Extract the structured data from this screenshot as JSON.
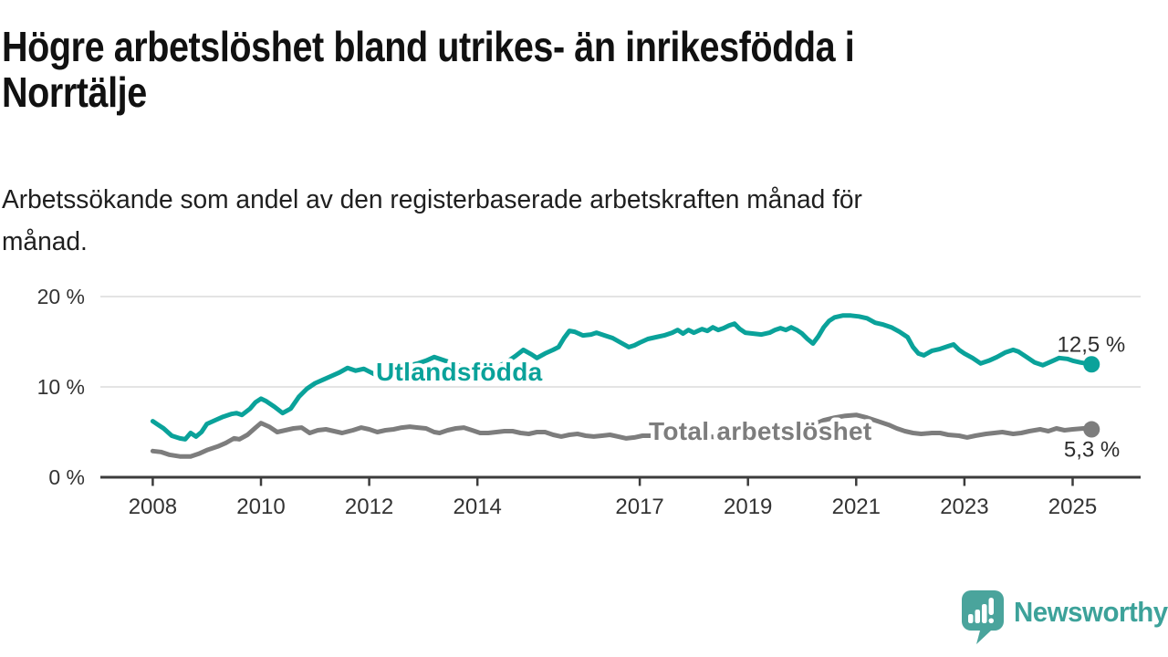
{
  "title": {
    "line1": "Högre arbetslöshet bland utrikes- än inrikesfödda i",
    "line2": "Norrtälje"
  },
  "subtitle": {
    "line1": "Arbetssökande som andel av den registerbaserade arbetskraften månad för",
    "line2": "månad."
  },
  "chart_data": {
    "type": "line",
    "title": "Högre arbetslöshet bland utrikes- än inrikesfödda i Norrtälje",
    "subtitle": "Arbetssökande som andel av den registerbaserade arbetskraften månad för månad.",
    "unit": "%",
    "grid": "horizontal",
    "legend": "inline-labels",
    "xlim": [
      2007.7,
      2026.3
    ],
    "ylim": [
      0,
      21
    ],
    "y_ticks": [
      {
        "value": 0,
        "label": "0 %"
      },
      {
        "value": 10,
        "label": "10 %"
      },
      {
        "value": 20,
        "label": "20 %"
      }
    ],
    "x_ticks": [
      {
        "value": 2008,
        "label": "2008"
      },
      {
        "value": 2010,
        "label": "2010"
      },
      {
        "value": 2012,
        "label": "2012"
      },
      {
        "value": 2014,
        "label": "2014"
      },
      {
        "value": 2017,
        "label": "2017"
      },
      {
        "value": 2019,
        "label": "2019"
      },
      {
        "value": 2021,
        "label": "2021"
      },
      {
        "value": 2023,
        "label": "2023"
      },
      {
        "value": 2025,
        "label": "2025"
      }
    ],
    "series": [
      {
        "name": "Utlandsfödda",
        "color": "#0aa29a",
        "end_value": 12.5,
        "end_label": "12,5 %",
        "points": [
          [
            2008.0,
            6.2
          ],
          [
            2008.1,
            5.8
          ],
          [
            2008.2,
            5.4
          ],
          [
            2008.35,
            4.6
          ],
          [
            2008.5,
            4.3
          ],
          [
            2008.6,
            4.2
          ],
          [
            2008.7,
            4.9
          ],
          [
            2008.8,
            4.5
          ],
          [
            2008.9,
            5.0
          ],
          [
            2009.0,
            5.9
          ],
          [
            2009.15,
            6.3
          ],
          [
            2009.3,
            6.7
          ],
          [
            2009.45,
            7.0
          ],
          [
            2009.55,
            7.1
          ],
          [
            2009.65,
            6.9
          ],
          [
            2009.8,
            7.6
          ],
          [
            2009.9,
            8.3
          ],
          [
            2010.0,
            8.7
          ],
          [
            2010.1,
            8.4
          ],
          [
            2010.25,
            7.8
          ],
          [
            2010.4,
            7.1
          ],
          [
            2010.55,
            7.6
          ],
          [
            2010.7,
            8.9
          ],
          [
            2010.85,
            9.8
          ],
          [
            2011.0,
            10.4
          ],
          [
            2011.15,
            10.8
          ],
          [
            2011.3,
            11.2
          ],
          [
            2011.45,
            11.6
          ],
          [
            2011.6,
            12.1
          ],
          [
            2011.75,
            11.8
          ],
          [
            2011.9,
            12.0
          ],
          [
            2012.0,
            11.7
          ],
          [
            2012.1,
            11.4
          ],
          [
            2012.25,
            11.3
          ],
          [
            2012.4,
            11.9
          ],
          [
            2012.6,
            12.2
          ],
          [
            2012.75,
            12.4
          ],
          [
            2012.9,
            12.6
          ],
          [
            2013.05,
            12.9
          ],
          [
            2013.2,
            13.3
          ],
          [
            2013.35,
            13.0
          ],
          [
            2013.5,
            12.7
          ],
          [
            2013.65,
            12.4
          ],
          [
            2013.8,
            12.1
          ],
          [
            2013.95,
            12.3
          ],
          [
            2014.1,
            11.9
          ],
          [
            2014.25,
            11.7
          ],
          [
            2014.4,
            12.3
          ],
          [
            2014.55,
            12.8
          ],
          [
            2014.7,
            13.4
          ],
          [
            2014.85,
            14.1
          ],
          [
            2015.0,
            13.6
          ],
          [
            2015.1,
            13.2
          ],
          [
            2015.25,
            13.7
          ],
          [
            2015.4,
            14.1
          ],
          [
            2015.5,
            14.4
          ],
          [
            2015.6,
            15.4
          ],
          [
            2015.7,
            16.2
          ],
          [
            2015.8,
            16.1
          ],
          [
            2015.95,
            15.7
          ],
          [
            2016.1,
            15.8
          ],
          [
            2016.2,
            16.0
          ],
          [
            2016.35,
            15.7
          ],
          [
            2016.5,
            15.4
          ],
          [
            2016.65,
            14.9
          ],
          [
            2016.8,
            14.4
          ],
          [
            2016.9,
            14.6
          ],
          [
            2017.0,
            14.9
          ],
          [
            2017.15,
            15.3
          ],
          [
            2017.3,
            15.5
          ],
          [
            2017.45,
            15.7
          ],
          [
            2017.6,
            16.0
          ],
          [
            2017.7,
            16.3
          ],
          [
            2017.8,
            15.9
          ],
          [
            2017.9,
            16.3
          ],
          [
            2018.0,
            16.0
          ],
          [
            2018.15,
            16.4
          ],
          [
            2018.25,
            16.2
          ],
          [
            2018.35,
            16.6
          ],
          [
            2018.45,
            16.3
          ],
          [
            2018.55,
            16.5
          ],
          [
            2018.65,
            16.8
          ],
          [
            2018.75,
            17.0
          ],
          [
            2018.85,
            16.4
          ],
          [
            2018.95,
            16.0
          ],
          [
            2019.1,
            15.9
          ],
          [
            2019.25,
            15.8
          ],
          [
            2019.4,
            16.0
          ],
          [
            2019.5,
            16.3
          ],
          [
            2019.6,
            16.5
          ],
          [
            2019.7,
            16.3
          ],
          [
            2019.8,
            16.6
          ],
          [
            2019.9,
            16.3
          ],
          [
            2020.0,
            15.9
          ],
          [
            2020.1,
            15.3
          ],
          [
            2020.2,
            14.8
          ],
          [
            2020.3,
            15.6
          ],
          [
            2020.4,
            16.6
          ],
          [
            2020.5,
            17.3
          ],
          [
            2020.6,
            17.7
          ],
          [
            2020.75,
            17.9
          ],
          [
            2020.9,
            17.9
          ],
          [
            2021.05,
            17.8
          ],
          [
            2021.2,
            17.6
          ],
          [
            2021.35,
            17.1
          ],
          [
            2021.5,
            16.9
          ],
          [
            2021.65,
            16.6
          ],
          [
            2021.8,
            16.1
          ],
          [
            2021.95,
            15.5
          ],
          [
            2022.05,
            14.4
          ],
          [
            2022.15,
            13.7
          ],
          [
            2022.25,
            13.5
          ],
          [
            2022.4,
            14.0
          ],
          [
            2022.55,
            14.2
          ],
          [
            2022.7,
            14.5
          ],
          [
            2022.8,
            14.7
          ],
          [
            2022.9,
            14.1
          ],
          [
            2023.0,
            13.7
          ],
          [
            2023.15,
            13.2
          ],
          [
            2023.3,
            12.6
          ],
          [
            2023.45,
            12.9
          ],
          [
            2023.6,
            13.3
          ],
          [
            2023.75,
            13.8
          ],
          [
            2023.9,
            14.1
          ],
          [
            2024.0,
            13.9
          ],
          [
            2024.15,
            13.3
          ],
          [
            2024.3,
            12.7
          ],
          [
            2024.45,
            12.4
          ],
          [
            2024.6,
            12.8
          ],
          [
            2024.75,
            13.2
          ],
          [
            2024.9,
            13.1
          ],
          [
            2025.0,
            12.9
          ],
          [
            2025.15,
            12.7
          ],
          [
            2025.35,
            12.5
          ]
        ]
      },
      {
        "name": "Total arbetslöshet",
        "color": "#7d7d7d",
        "end_value": 5.3,
        "end_label": "5,3 %",
        "points": [
          [
            2008.0,
            2.9
          ],
          [
            2008.15,
            2.8
          ],
          [
            2008.3,
            2.5
          ],
          [
            2008.5,
            2.3
          ],
          [
            2008.7,
            2.3
          ],
          [
            2008.85,
            2.6
          ],
          [
            2009.0,
            3.0
          ],
          [
            2009.2,
            3.4
          ],
          [
            2009.35,
            3.8
          ],
          [
            2009.5,
            4.3
          ],
          [
            2009.6,
            4.2
          ],
          [
            2009.75,
            4.7
          ],
          [
            2009.9,
            5.5
          ],
          [
            2010.0,
            6.0
          ],
          [
            2010.15,
            5.6
          ],
          [
            2010.3,
            5.0
          ],
          [
            2010.45,
            5.2
          ],
          [
            2010.6,
            5.4
          ],
          [
            2010.75,
            5.5
          ],
          [
            2010.9,
            4.9
          ],
          [
            2011.05,
            5.2
          ],
          [
            2011.2,
            5.3
          ],
          [
            2011.35,
            5.1
          ],
          [
            2011.5,
            4.9
          ],
          [
            2011.7,
            5.2
          ],
          [
            2011.85,
            5.5
          ],
          [
            2012.0,
            5.3
          ],
          [
            2012.15,
            5.0
          ],
          [
            2012.3,
            5.2
          ],
          [
            2012.45,
            5.3
          ],
          [
            2012.6,
            5.5
          ],
          [
            2012.75,
            5.6
          ],
          [
            2012.9,
            5.5
          ],
          [
            2013.05,
            5.4
          ],
          [
            2013.2,
            5.0
          ],
          [
            2013.3,
            4.9
          ],
          [
            2013.45,
            5.2
          ],
          [
            2013.6,
            5.4
          ],
          [
            2013.75,
            5.5
          ],
          [
            2013.9,
            5.2
          ],
          [
            2014.05,
            4.9
          ],
          [
            2014.2,
            4.9
          ],
          [
            2014.35,
            5.0
          ],
          [
            2014.5,
            5.1
          ],
          [
            2014.65,
            5.1
          ],
          [
            2014.8,
            4.9
          ],
          [
            2014.95,
            4.8
          ],
          [
            2015.1,
            5.0
          ],
          [
            2015.25,
            5.0
          ],
          [
            2015.4,
            4.7
          ],
          [
            2015.55,
            4.5
          ],
          [
            2015.7,
            4.7
          ],
          [
            2015.85,
            4.8
          ],
          [
            2016.0,
            4.6
          ],
          [
            2016.15,
            4.5
          ],
          [
            2016.3,
            4.6
          ],
          [
            2016.45,
            4.7
          ],
          [
            2016.6,
            4.5
          ],
          [
            2016.75,
            4.3
          ],
          [
            2016.9,
            4.4
          ],
          [
            2017.05,
            4.6
          ],
          [
            2017.2,
            4.6
          ],
          [
            2017.4,
            4.4
          ],
          [
            2017.6,
            4.4
          ],
          [
            2017.8,
            4.5
          ],
          [
            2018.0,
            4.4
          ],
          [
            2018.25,
            4.5
          ],
          [
            2018.5,
            4.4
          ],
          [
            2018.75,
            4.5
          ],
          [
            2019.0,
            4.6
          ],
          [
            2019.25,
            4.7
          ],
          [
            2019.5,
            4.8
          ],
          [
            2019.75,
            4.9
          ],
          [
            2020.0,
            5.2
          ],
          [
            2020.2,
            5.8
          ],
          [
            2020.4,
            6.3
          ],
          [
            2020.6,
            6.6
          ],
          [
            2020.8,
            6.8
          ],
          [
            2021.0,
            6.9
          ],
          [
            2021.2,
            6.6
          ],
          [
            2021.4,
            6.2
          ],
          [
            2021.6,
            5.8
          ],
          [
            2021.75,
            5.4
          ],
          [
            2021.9,
            5.1
          ],
          [
            2022.05,
            4.9
          ],
          [
            2022.2,
            4.8
          ],
          [
            2022.4,
            4.9
          ],
          [
            2022.55,
            4.9
          ],
          [
            2022.7,
            4.7
          ],
          [
            2022.9,
            4.6
          ],
          [
            2023.05,
            4.4
          ],
          [
            2023.2,
            4.6
          ],
          [
            2023.4,
            4.8
          ],
          [
            2023.55,
            4.9
          ],
          [
            2023.7,
            5.0
          ],
          [
            2023.9,
            4.8
          ],
          [
            2024.05,
            4.9
          ],
          [
            2024.2,
            5.1
          ],
          [
            2024.4,
            5.3
          ],
          [
            2024.55,
            5.1
          ],
          [
            2024.7,
            5.4
          ],
          [
            2024.85,
            5.2
          ],
          [
            2025.0,
            5.3
          ],
          [
            2025.2,
            5.4
          ],
          [
            2025.35,
            5.3
          ]
        ]
      }
    ]
  },
  "logo": {
    "text": "Newsworthy",
    "color": "#3da29a",
    "icon": "newsworthy-speech-bubble-chart-icon"
  }
}
